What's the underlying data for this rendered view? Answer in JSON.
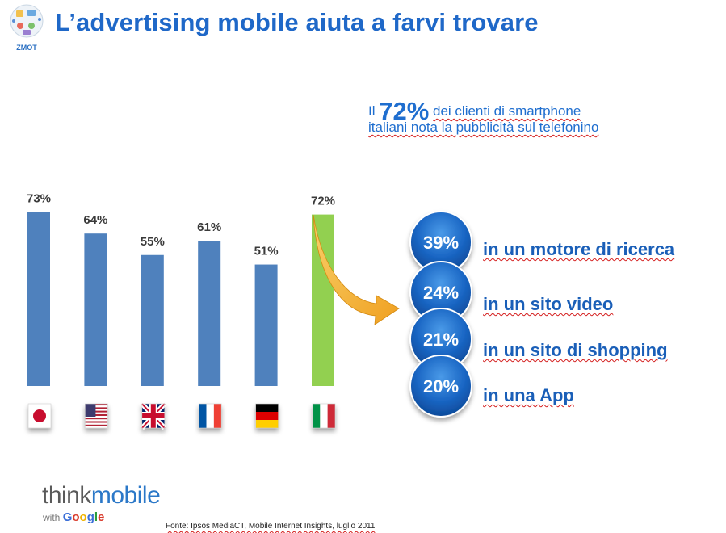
{
  "header": {
    "title": "L’advertising mobile aiuta a farvi trovare",
    "logo_text": "ZMOT"
  },
  "headline": {
    "prefix": "Il",
    "big": "72%",
    "rest": "dei clienti di smartphone",
    "line2": "italiani nota la pubblicità sul telefonino"
  },
  "chart_data": {
    "type": "bar",
    "categories": [
      "Japan",
      "USA",
      "UK",
      "France",
      "Germany",
      "Italy"
    ],
    "values": [
      73,
      64,
      55,
      61,
      51,
      72
    ],
    "value_labels": [
      "73%",
      "64%",
      "55%",
      "61%",
      "51%",
      "72%"
    ],
    "ylim": [
      0,
      100
    ],
    "bar_color": "#4f81bd",
    "highlight_color": "#92d050",
    "highlight_category": "Italy",
    "grid": false,
    "breakdown": [
      {
        "value": "39%",
        "label": "in un motore di ricerca"
      },
      {
        "value": "24%",
        "label": "in un sito video"
      },
      {
        "value": "21%",
        "label": "in un sito di shopping"
      },
      {
        "value": "20%",
        "label": "in una App"
      }
    ]
  },
  "flags": [
    "japan-flag-icon",
    "usa-flag-icon",
    "uk-flag-icon",
    "france-flag-icon",
    "germany-flag-icon",
    "italy-flag-icon"
  ],
  "brand": {
    "think": "think",
    "mobile": "mobile",
    "with": "with",
    "google": "Google"
  },
  "footer": {
    "source": "Fonte: Ipsos MediaCT, Mobile Internet Insights, luglio 2011"
  },
  "colors": {
    "title": "#1f68c8",
    "bubble": "#1565c0",
    "arrow": "#f5b335"
  }
}
